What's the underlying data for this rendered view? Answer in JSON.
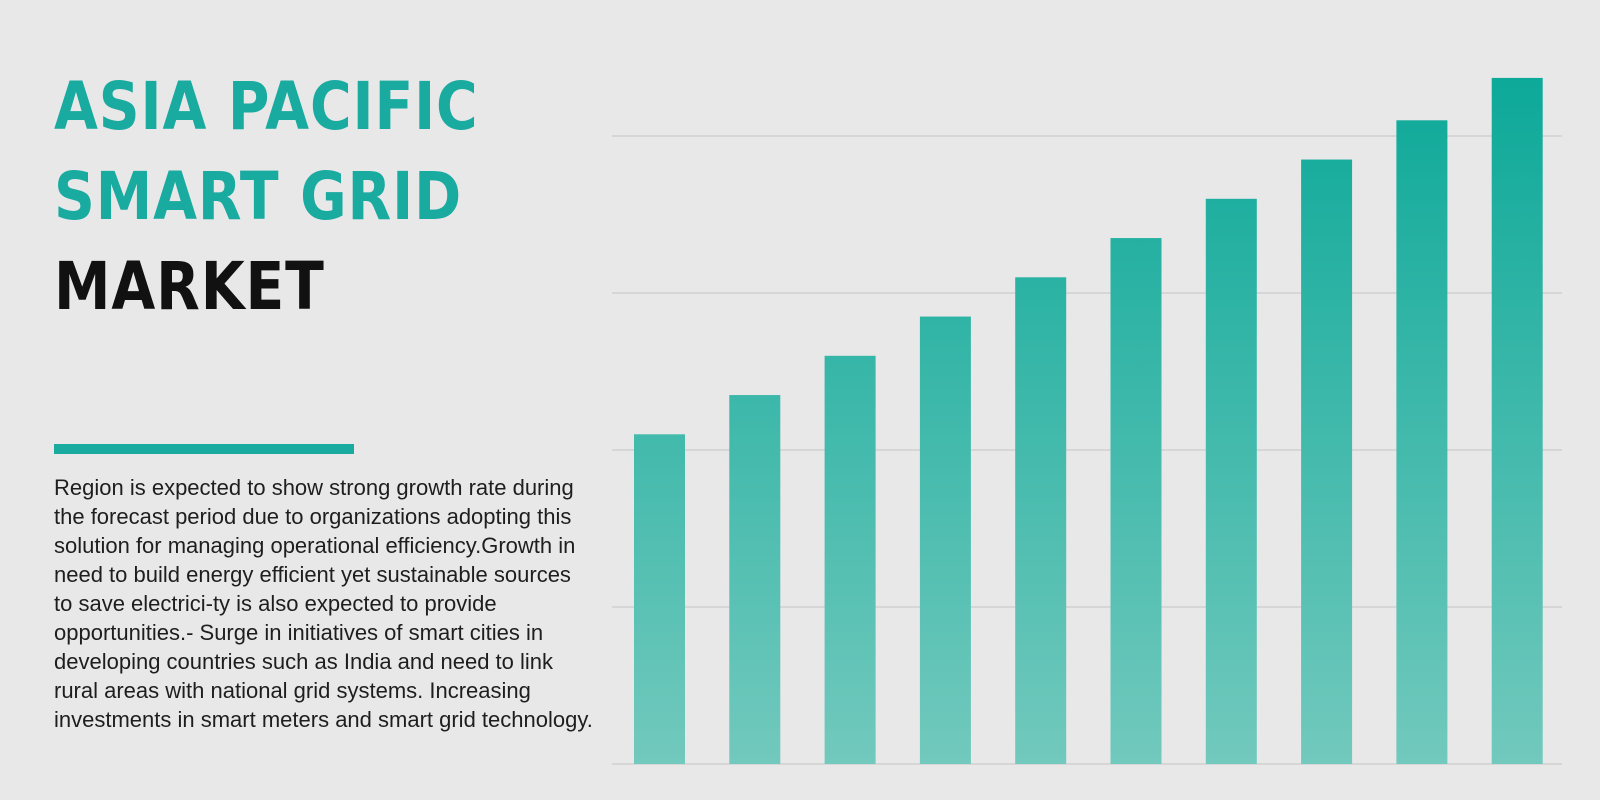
{
  "title": {
    "line1": "ASIA PACIFIC",
    "line2": "SMART GRID",
    "line3": "MARKET"
  },
  "description": "Region is expected to show strong growth rate during the forecast period due to organizations adopting this solution for managing operational efficiency.Growth in need to build energy efficient yet sustainable sources to save electrici-ty is also expected to provide opportunities.- Surge in initiatives of smart cities in developing countries such as India and need to link rural areas with national grid systems. Increasing investments in smart meters and smart grid technology.",
  "colors": {
    "accent": "#19aaa0",
    "bar_top": "#0aa898",
    "bar_bottom": "#72c9bd",
    "gridline": "#cfcfcf",
    "background": "#e8e8e8"
  },
  "chart_data": {
    "type": "bar",
    "categories": [
      "",
      "",
      "",
      "",
      "",
      "",
      "",
      "",
      "",
      ""
    ],
    "values": [
      2.1,
      2.35,
      2.6,
      2.85,
      3.1,
      3.35,
      3.6,
      3.85,
      4.1,
      4.37
    ],
    "title": "",
    "xlabel": "",
    "ylabel": "",
    "ylim": [
      0,
      4.0
    ],
    "gridlines": [
      1,
      2,
      3,
      4
    ],
    "grid": true,
    "legend": "none"
  }
}
